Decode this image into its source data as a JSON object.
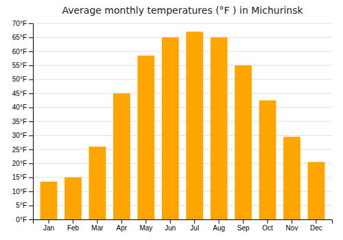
{
  "chart_data": {
    "type": "bar",
    "title": "Average monthly temperatures (°F ) in Michurinsk",
    "categories": [
      "Jan",
      "Feb",
      "Mar",
      "Apr",
      "May",
      "Jun",
      "Jul",
      "Aug",
      "Sep",
      "Oct",
      "Nov",
      "Dec"
    ],
    "values": [
      13.5,
      15,
      26,
      45,
      58.5,
      65,
      67,
      65,
      55,
      42.5,
      29.5,
      20.5
    ],
    "color": "#FFA500",
    "ylim": [
      0,
      70
    ],
    "yticks": [
      {
        "value": 0,
        "label": "0°F"
      },
      {
        "value": 5,
        "label": "5°F"
      },
      {
        "value": 10,
        "label": "10°F"
      },
      {
        "value": 15,
        "label": "15°F"
      },
      {
        "value": 20,
        "label": "20°F"
      },
      {
        "value": 25,
        "label": "25°F"
      },
      {
        "value": 30,
        "label": "30°F"
      },
      {
        "value": 35,
        "label": "35°F"
      },
      {
        "value": 40,
        "label": "40°F"
      },
      {
        "value": 45,
        "label": "45°F"
      },
      {
        "value": 50,
        "label": "50°F"
      },
      {
        "value": 55,
        "label": "55°F"
      },
      {
        "value": 60,
        "label": "60°F"
      },
      {
        "value": 65,
        "label": "65°F"
      },
      {
        "value": 70,
        "label": "70°F"
      }
    ],
    "grid": true
  }
}
